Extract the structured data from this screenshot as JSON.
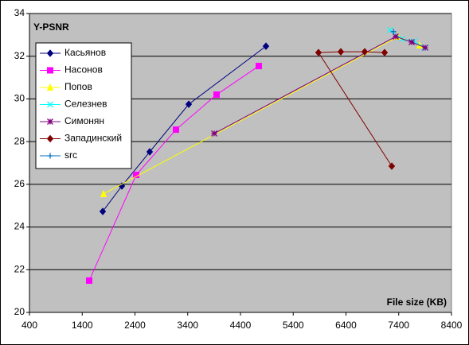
{
  "chart_data": {
    "type": "line",
    "title": "Y-PSNR",
    "x_label": "File size (KB)",
    "xlim": [
      400,
      8400
    ],
    "xticks": [
      400,
      1400,
      2400,
      3400,
      4400,
      5400,
      6400,
      7400,
      8400
    ],
    "ylim": [
      20,
      34
    ],
    "yticks": [
      20,
      22,
      24,
      26,
      28,
      30,
      32,
      34
    ],
    "grid": true,
    "legend": "upper-left",
    "series": [
      {
        "name": "Касьянов",
        "color": "#000080",
        "marker": "diamond",
        "x": [
          1789,
          2151,
          2679,
          3419,
          4883
        ],
        "values": [
          24.73,
          25.92,
          27.52,
          29.75,
          32.47
        ]
      },
      {
        "name": "Насонов",
        "color": "#ff00ff",
        "marker": "square",
        "x": [
          1532,
          2423,
          3177,
          3947,
          4747
        ],
        "values": [
          21.49,
          26.44,
          28.56,
          30.2,
          31.54
        ]
      },
      {
        "name": "Попов",
        "color": "#ffff00",
        "marker": "triangle",
        "x": [
          1804,
          7389,
          7796
        ],
        "values": [
          25.55,
          32.92,
          32.51
        ]
      },
      {
        "name": "Селезнев",
        "color": "#00ffff",
        "marker": "x",
        "x": [
          7238,
          7464,
          7691,
          7887
        ],
        "values": [
          33.22,
          32.81,
          32.7,
          32.4
        ]
      },
      {
        "name": "Симонян",
        "color": "#800080",
        "marker": "star",
        "x": [
          3902,
          7343,
          7645,
          7902
        ],
        "values": [
          28.38,
          32.92,
          32.66,
          32.4
        ]
      },
      {
        "name": "Западинский",
        "color": "#800000",
        "marker": "diamond",
        "x": [
          7268,
          5879,
          6302,
          6755,
          7132
        ],
        "values": [
          26.85,
          32.17,
          32.21,
          32.21,
          32.17
        ]
      },
      {
        "name": "src",
        "color": "#0070c0",
        "marker": "plus",
        "x": [
          7300
        ],
        "values": [
          33.15
        ]
      }
    ]
  }
}
